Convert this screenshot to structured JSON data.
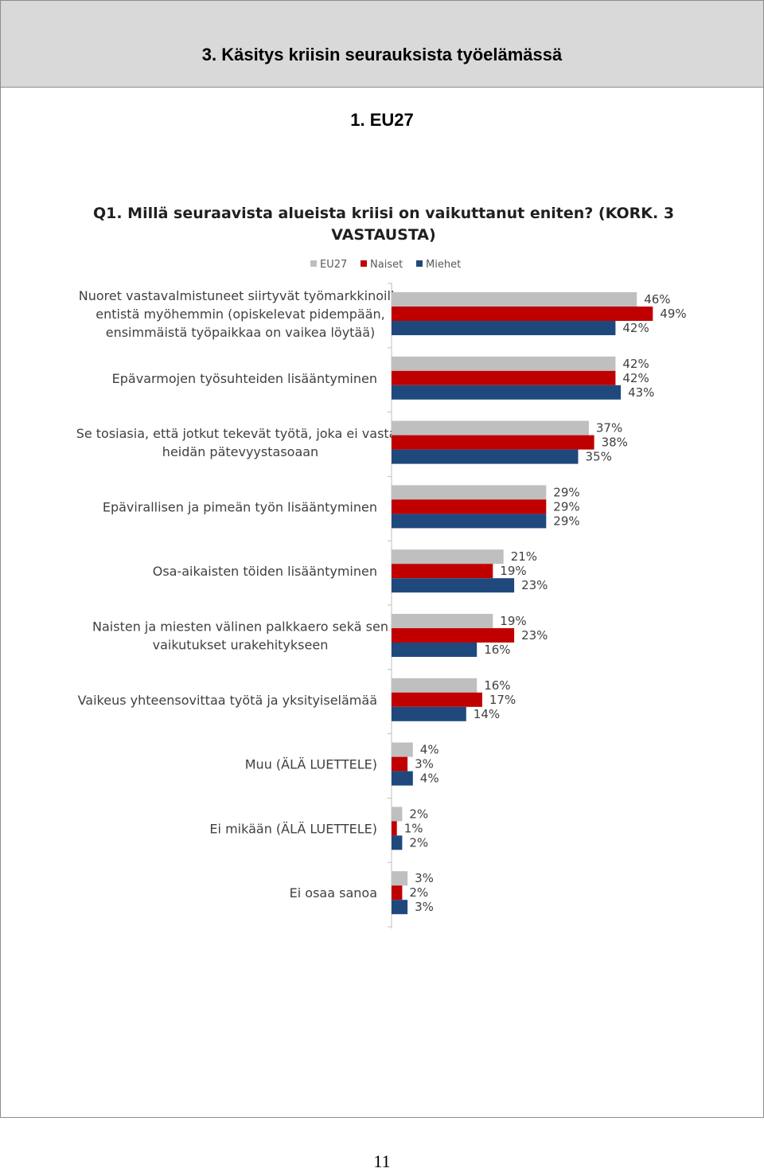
{
  "page": {
    "section_title": "3.   Käsitys kriisin seurauksista työelämässä",
    "subsection_title": "1.   EU27",
    "page_number": "11"
  },
  "chart_data": {
    "type": "bar",
    "orientation": "horizontal",
    "title": "Q1. Millä seuraavista alueista kriisi on vaikuttanut eniten? (KORK. 3 VASTAUSTA)",
    "title_lines": [
      "Q1. Millä seuraavista alueista kriisi on vaikuttanut eniten? (KORK. 3",
      "VASTAUSTA)"
    ],
    "legend_position": "top",
    "xlim": [
      0,
      100
    ],
    "unit": "%",
    "grid": false,
    "categories": [
      [
        "Nuoret vastavalmistuneet siirtyvät työmarkkinoille",
        "entistä myöhemmin (opiskelevat pidempään,",
        "ensimmäistä työpaikkaa on vaikea löytää)"
      ],
      [
        "Epävarmojen työsuhteiden lisääntyminen"
      ],
      [
        "Se tosiasia, että jotkut tekevät työtä, joka ei vastaa",
        "heidän pätevyystasoaan"
      ],
      [
        "Epävirallisen ja pimeän työn lisääntyminen"
      ],
      [
        "Osa-aikaisten töiden lisääntyminen"
      ],
      [
        "Naisten ja miesten välinen palkkaero sekä sen",
        "vaikutukset urakehitykseen"
      ],
      [
        "Vaikeus yhteensovittaa työtä ja yksityiselämää"
      ],
      [
        "Muu (ÄLÄ LUETTELE)"
      ],
      [
        "Ei mikään (ÄLÄ LUETTELE)"
      ],
      [
        "Ei osaa sanoa"
      ]
    ],
    "series": [
      {
        "name": "EU27",
        "color": "#bfbfbf",
        "values": [
          46,
          42,
          37,
          29,
          21,
          19,
          16,
          4,
          2,
          3
        ]
      },
      {
        "name": "Naiset",
        "color": "#c00000",
        "values": [
          49,
          42,
          38,
          29,
          19,
          23,
          17,
          3,
          1,
          2
        ]
      },
      {
        "name": "Miehet",
        "color": "#1f497d",
        "values": [
          42,
          43,
          35,
          29,
          23,
          16,
          14,
          4,
          2,
          3
        ]
      }
    ]
  }
}
